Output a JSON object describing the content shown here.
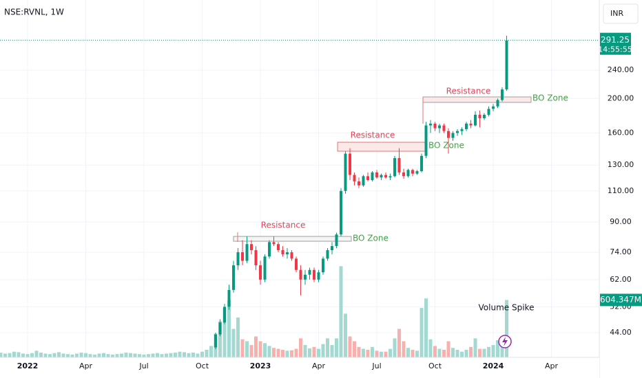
{
  "chart_data": {
    "type": "candlestick",
    "symbol": "NSE:RVNL, 1W",
    "currency": "INR",
    "log_scale": true,
    "grid": true,
    "up_color": "#089981",
    "down_color": "#f23645",
    "volume_up_color": "#a3d9d0",
    "volume_down_color": "#f8b0ae",
    "ylim": [
      37.5,
      378
    ],
    "yticks": [
      {
        "value": 44,
        "label": "44.00"
      },
      {
        "value": 52,
        "label": "52.00"
      },
      {
        "value": 62,
        "label": "62.00"
      },
      {
        "value": 74,
        "label": "74.00"
      },
      {
        "value": 90,
        "label": "90.00"
      },
      {
        "value": 110,
        "label": "110.00"
      },
      {
        "value": 130,
        "label": "130.00"
      },
      {
        "value": 160,
        "label": "160.00"
      },
      {
        "value": 200,
        "label": "200.00"
      },
      {
        "value": 240,
        "label": "240.00"
      }
    ],
    "volume_lim": [
      0,
      3760
    ],
    "last_price": 291.25,
    "countdown": "14:55:55",
    "volume_last": {
      "value": 604.347,
      "label": "604.347M"
    },
    "annotations": [
      "Resistance",
      "BO Zone",
      "Resistance",
      "BO Zone",
      "Resistance",
      "BO Zone",
      "Volume Spike"
    ],
    "categories": [
      null,
      null,
      null,
      null,
      null,
      null,
      "2022",
      null,
      null,
      null,
      null,
      null,
      null,
      null,
      null,
      null,
      null,
      null,
      null,
      "Apr",
      null,
      null,
      null,
      null,
      null,
      null,
      null,
      null,
      null,
      null,
      null,
      null,
      "Jul",
      null,
      null,
      null,
      null,
      null,
      null,
      null,
      null,
      null,
      null,
      null,
      null,
      "Oct",
      null,
      null,
      null,
      null,
      null,
      null,
      null,
      null,
      null,
      null,
      null,
      null,
      "2023",
      null,
      null,
      null,
      null,
      null,
      null,
      null,
      null,
      null,
      null,
      null,
      null,
      "Apr",
      null,
      null,
      null,
      null,
      null,
      null,
      null,
      null,
      null,
      null,
      null,
      null,
      "Jul",
      null,
      null,
      null,
      null,
      null,
      null,
      null,
      null,
      null,
      null,
      null,
      null,
      "Oct",
      null,
      null,
      null,
      null,
      null,
      null,
      null,
      null,
      null,
      null,
      null,
      null,
      "2024",
      null,
      null,
      null,
      null,
      null,
      null,
      null,
      null,
      null,
      null,
      null,
      null,
      "Apr",
      null
    ],
    "ohlc": [
      null,
      null,
      null,
      null,
      null,
      null,
      null,
      null,
      null,
      null,
      null,
      null,
      null,
      null,
      null,
      null,
      null,
      null,
      null,
      null,
      null,
      null,
      null,
      null,
      null,
      null,
      null,
      null,
      null,
      null,
      null,
      null,
      null,
      null,
      null,
      null,
      null,
      null,
      null,
      null,
      null,
      null,
      null,
      null,
      null,
      null,
      null,
      null,
      [
        40,
        44,
        39.5,
        43.5
      ],
      [
        43.5,
        48,
        43,
        47
      ],
      [
        47,
        53,
        46.5,
        52
      ],
      [
        52,
        60,
        51,
        58
      ],
      [
        58,
        70,
        57,
        68
      ],
      [
        68,
        76,
        66,
        74
      ],
      [
        74,
        80,
        68,
        70
      ],
      [
        70,
        82,
        69,
        78
      ],
      [
        78,
        80,
        73,
        75
      ],
      [
        75,
        77,
        66,
        68
      ],
      [
        68,
        70,
        60,
        62
      ],
      [
        62,
        73,
        61,
        72
      ],
      [
        72,
        80,
        71,
        79
      ],
      [
        79,
        82,
        77,
        78
      ],
      [
        78,
        79,
        74,
        75
      ],
      [
        75,
        77,
        72,
        73
      ],
      [
        73,
        76,
        71,
        74
      ],
      [
        74,
        75,
        70,
        71
      ],
      [
        71,
        72,
        65,
        66
      ],
      [
        66,
        68,
        56,
        62
      ],
      [
        62,
        66,
        60,
        64
      ],
      [
        64,
        67,
        62,
        66
      ],
      [
        66,
        67,
        61,
        62
      ],
      [
        62,
        66,
        61,
        65
      ],
      [
        65,
        72,
        64,
        71
      ],
      [
        71,
        76,
        70,
        75
      ],
      [
        75,
        79,
        73,
        77
      ],
      [
        77,
        84,
        76,
        83
      ],
      [
        83,
        112,
        82,
        110
      ],
      [
        110,
        142,
        108,
        140
      ],
      [
        140,
        145,
        118,
        122
      ],
      [
        122,
        124,
        114,
        117
      ],
      [
        117,
        120,
        112,
        114
      ],
      [
        114,
        122,
        113,
        121
      ],
      [
        121,
        124,
        117,
        118
      ],
      [
        118,
        125,
        117,
        124
      ],
      [
        124,
        126,
        119,
        120
      ],
      [
        120,
        123,
        118,
        122
      ],
      [
        122,
        124,
        119,
        120
      ],
      [
        120,
        123,
        118,
        121
      ],
      [
        121,
        138,
        120,
        136
      ],
      [
        136,
        145,
        122,
        124
      ],
      [
        124,
        127,
        119,
        121
      ],
      [
        121,
        127,
        120,
        126
      ],
      [
        126,
        127,
        121,
        123
      ],
      [
        123,
        126,
        122,
        125
      ],
      [
        125,
        140,
        124,
        138
      ],
      [
        138,
        172,
        136,
        168
      ],
      [
        168,
        174,
        160,
        170
      ],
      [
        170,
        172,
        162,
        165
      ],
      [
        165,
        170,
        160,
        168
      ],
      [
        168,
        170,
        160,
        162
      ],
      [
        162,
        165,
        140,
        155
      ],
      [
        155,
        162,
        152,
        160
      ],
      [
        160,
        164,
        157,
        162
      ],
      [
        162,
        166,
        158,
        164
      ],
      [
        164,
        172,
        162,
        170
      ],
      [
        170,
        174,
        165,
        168
      ],
      [
        168,
        184,
        167,
        180
      ],
      [
        180,
        185,
        166,
        176
      ],
      [
        176,
        182,
        174,
        180
      ],
      [
        180,
        190,
        178,
        187
      ],
      [
        187,
        193,
        184,
        190
      ],
      [
        190,
        200,
        188,
        198
      ],
      [
        198,
        215,
        196,
        212
      ],
      [
        212,
        300,
        210,
        291.25
      ],
      null,
      null,
      null,
      null,
      null,
      null,
      null,
      null,
      null,
      null,
      null
    ],
    "volume": [
      50,
      40,
      45,
      60,
      55,
      40,
      35,
      45,
      70,
      50,
      40,
      35,
      45,
      55,
      40,
      35,
      30,
      40,
      50,
      45,
      35,
      30,
      40,
      45,
      35,
      30,
      35,
      40,
      50,
      45,
      40,
      35,
      30,
      35,
      40,
      45,
      35,
      40,
      45,
      50,
      60,
      55,
      45,
      50,
      40,
      60,
      80,
      120,
      250,
      380,
      520,
      600,
      300,
      420,
      190,
      170,
      130,
      220,
      170,
      150,
      120,
      100,
      90,
      80,
      70,
      75,
      90,
      200,
      130,
      95,
      110,
      90,
      140,
      200,
      130,
      200,
      960,
      460,
      220,
      170,
      110,
      90,
      80,
      110,
      70,
      60,
      60,
      90,
      200,
      300,
      170,
      100,
      80,
      70,
      520,
      620,
      190,
      120,
      90,
      80,
      170,
      100,
      80,
      60,
      80,
      110,
      200,
      90,
      90,
      110,
      130,
      180,
      200,
      604.347,
      null,
      null,
      null,
      null,
      null,
      null,
      null,
      null,
      null,
      null,
      null
    ]
  }
}
